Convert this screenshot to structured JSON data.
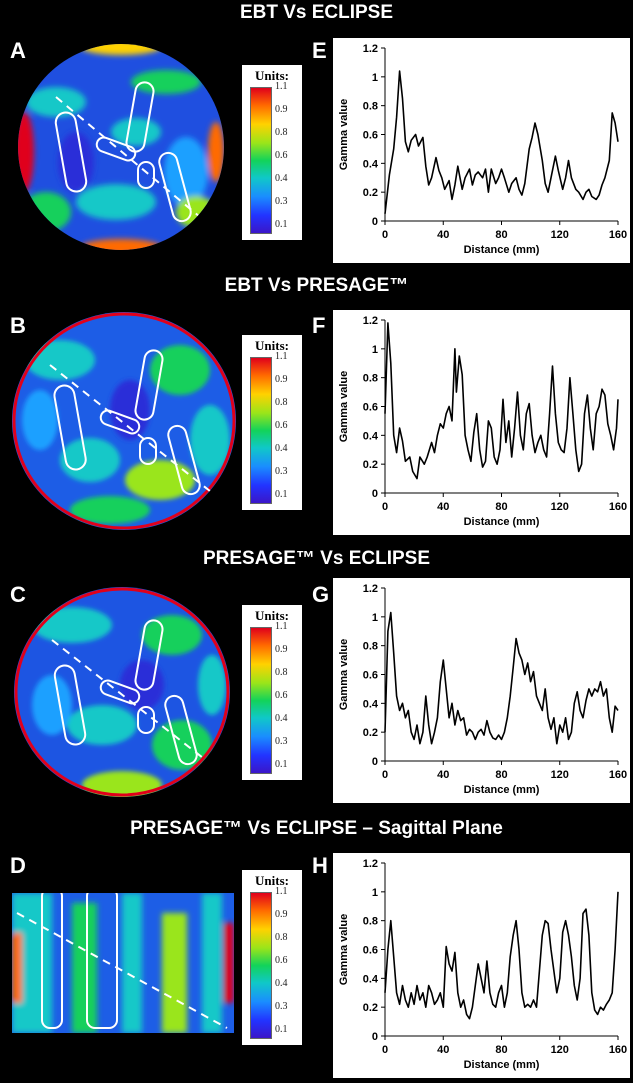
{
  "titles": [
    "EBT Vs ECLIPSE",
    "EBT Vs PRESAGE™",
    "PRESAGE™ Vs ECLIPSE",
    "PRESAGE™ Vs ECLIPSE – Sagittal Plane"
  ],
  "panel_letters": [
    "A",
    "B",
    "C",
    "D",
    "E",
    "F",
    "G",
    "H"
  ],
  "legend": {
    "title": "Units:",
    "ticks": [
      "1.1",
      "0.9",
      "0.8",
      "0.6",
      "0.4",
      "0.3",
      "0.1"
    ],
    "colors": [
      "#e0001b",
      "#ff6a00",
      "#ffd200",
      "#9ae51a",
      "#12d35a",
      "#10c8c8",
      "#1a8dff",
      "#2233ff",
      "#3b16c8"
    ]
  },
  "chart_data": [
    {
      "panel": "E",
      "type": "line",
      "xlabel": "Distance (mm)",
      "ylabel": "Gamma value",
      "xlim": [
        0,
        160
      ],
      "ylim": [
        0,
        1.2
      ],
      "xticks": [
        "0",
        "40",
        "80",
        "120",
        "160"
      ],
      "yticks": [
        "0",
        "0.2",
        "0.4",
        "0.6",
        "0.8",
        "1",
        "1.2"
      ],
      "x": [
        0,
        3,
        6,
        8,
        10,
        12,
        14,
        16,
        18,
        21,
        23,
        26,
        28,
        30,
        32,
        35,
        37,
        39,
        41,
        44,
        46,
        48,
        50,
        53,
        55,
        58,
        60,
        62,
        64,
        67,
        69,
        71,
        73,
        76,
        78,
        80,
        82,
        85,
        87,
        90,
        92,
        94,
        96,
        99,
        101,
        103,
        105,
        108,
        110,
        112,
        114,
        117,
        119,
        122,
        124,
        126,
        128,
        131,
        133,
        136,
        138,
        140,
        142,
        145,
        147,
        149,
        151,
        154,
        156,
        158,
        160
      ],
      "y": [
        0.05,
        0.32,
        0.5,
        0.72,
        1.04,
        0.85,
        0.55,
        0.48,
        0.56,
        0.6,
        0.52,
        0.58,
        0.38,
        0.25,
        0.3,
        0.44,
        0.35,
        0.3,
        0.22,
        0.28,
        0.15,
        0.25,
        0.38,
        0.22,
        0.3,
        0.36,
        0.25,
        0.32,
        0.34,
        0.3,
        0.36,
        0.2,
        0.36,
        0.26,
        0.3,
        0.36,
        0.3,
        0.2,
        0.26,
        0.3,
        0.22,
        0.18,
        0.26,
        0.5,
        0.58,
        0.68,
        0.6,
        0.42,
        0.26,
        0.2,
        0.3,
        0.45,
        0.35,
        0.22,
        0.3,
        0.42,
        0.3,
        0.22,
        0.2,
        0.15,
        0.2,
        0.22,
        0.17,
        0.15,
        0.18,
        0.25,
        0.3,
        0.42,
        0.75,
        0.68,
        0.55
      ]
    },
    {
      "panel": "F",
      "type": "line",
      "xlabel": "Distance (mm)",
      "ylabel": "Gamma value",
      "xlim": [
        0,
        160
      ],
      "ylim": [
        0,
        1.2
      ],
      "xticks": [
        "0",
        "40",
        "80",
        "120",
        "160"
      ],
      "yticks": [
        "0",
        "0.2",
        "0.4",
        "0.6",
        "0.8",
        "1",
        "1.2"
      ],
      "x": [
        0,
        2,
        4,
        6,
        8,
        10,
        12,
        14,
        17,
        19,
        22,
        24,
        27,
        29,
        32,
        34,
        36,
        38,
        40,
        42,
        44,
        46,
        48,
        49,
        51,
        53,
        55,
        57,
        59,
        61,
        63,
        65,
        67,
        69,
        71,
        73,
        75,
        77,
        79,
        81,
        83,
        85,
        87,
        89,
        91,
        93,
        95,
        97,
        99,
        101,
        103,
        105,
        107,
        109,
        111,
        113,
        115,
        117,
        119,
        121,
        123,
        125,
        127,
        129,
        131,
        133,
        135,
        137,
        139,
        141,
        143,
        145,
        147,
        149,
        151,
        153,
        155,
        157,
        159,
        160
      ],
      "y": [
        0.55,
        1.18,
        0.9,
        0.4,
        0.28,
        0.45,
        0.36,
        0.22,
        0.25,
        0.15,
        0.1,
        0.25,
        0.2,
        0.25,
        0.35,
        0.28,
        0.4,
        0.48,
        0.45,
        0.55,
        0.6,
        0.5,
        1.0,
        0.7,
        0.95,
        0.82,
        0.4,
        0.3,
        0.22,
        0.42,
        0.55,
        0.3,
        0.18,
        0.22,
        0.5,
        0.45,
        0.25,
        0.2,
        0.3,
        0.65,
        0.35,
        0.5,
        0.25,
        0.45,
        0.7,
        0.4,
        0.3,
        0.55,
        0.62,
        0.4,
        0.28,
        0.35,
        0.4,
        0.3,
        0.25,
        0.55,
        0.88,
        0.55,
        0.35,
        0.3,
        0.28,
        0.45,
        0.8,
        0.55,
        0.3,
        0.15,
        0.2,
        0.55,
        0.68,
        0.45,
        0.3,
        0.55,
        0.6,
        0.72,
        0.68,
        0.48,
        0.4,
        0.3,
        0.45,
        0.65
      ]
    },
    {
      "panel": "G",
      "type": "line",
      "xlabel": "Distance (mm)",
      "ylabel": "Gamma value",
      "xlim": [
        0,
        160
      ],
      "ylim": [
        0,
        1.2
      ],
      "xticks": [
        "0",
        "40",
        "80",
        "120",
        "160"
      ],
      "yticks": [
        "0",
        "0.2",
        "0.4",
        "0.6",
        "0.8",
        "1",
        "1.2"
      ],
      "x": [
        0,
        2,
        4,
        6,
        8,
        10,
        12,
        14,
        16,
        18,
        20,
        22,
        24,
        26,
        28,
        30,
        32,
        34,
        36,
        38,
        40,
        42,
        44,
        46,
        48,
        50,
        52,
        54,
        56,
        58,
        60,
        62,
        64,
        66,
        68,
        70,
        72,
        74,
        76,
        78,
        80,
        82,
        84,
        86,
        88,
        90,
        92,
        94,
        96,
        98,
        100,
        102,
        104,
        106,
        108,
        110,
        112,
        114,
        116,
        118,
        120,
        122,
        124,
        126,
        128,
        130,
        132,
        134,
        136,
        138,
        140,
        142,
        144,
        146,
        148,
        150,
        152,
        154,
        156,
        158,
        160
      ],
      "y": [
        0.2,
        0.9,
        1.03,
        0.75,
        0.45,
        0.35,
        0.4,
        0.3,
        0.35,
        0.2,
        0.15,
        0.25,
        0.12,
        0.2,
        0.45,
        0.25,
        0.12,
        0.2,
        0.3,
        0.55,
        0.7,
        0.5,
        0.3,
        0.4,
        0.25,
        0.35,
        0.28,
        0.3,
        0.18,
        0.22,
        0.2,
        0.15,
        0.2,
        0.22,
        0.18,
        0.28,
        0.2,
        0.16,
        0.15,
        0.18,
        0.15,
        0.2,
        0.3,
        0.45,
        0.65,
        0.85,
        0.75,
        0.7,
        0.6,
        0.68,
        0.55,
        0.62,
        0.45,
        0.4,
        0.35,
        0.5,
        0.3,
        0.22,
        0.3,
        0.12,
        0.25,
        0.2,
        0.3,
        0.15,
        0.2,
        0.4,
        0.48,
        0.35,
        0.3,
        0.42,
        0.5,
        0.45,
        0.5,
        0.48,
        0.55,
        0.45,
        0.5,
        0.3,
        0.2,
        0.38,
        0.35
      ]
    },
    {
      "panel": "H",
      "type": "line",
      "xlabel": "Distance (mm)",
      "ylabel": "Gamma value",
      "xlim": [
        0,
        160
      ],
      "ylim": [
        0,
        1.2
      ],
      "xticks": [
        "0",
        "40",
        "80",
        "120",
        "160"
      ],
      "yticks": [
        "0",
        "0.2",
        "0.4",
        "0.6",
        "0.8",
        "1",
        "1.2"
      ],
      "x": [
        0,
        2,
        4,
        6,
        8,
        10,
        12,
        14,
        16,
        18,
        20,
        22,
        24,
        26,
        28,
        30,
        32,
        34,
        36,
        38,
        40,
        42,
        44,
        46,
        48,
        50,
        52,
        54,
        56,
        58,
        60,
        62,
        64,
        66,
        68,
        70,
        72,
        74,
        76,
        78,
        80,
        82,
        84,
        86,
        88,
        90,
        92,
        94,
        96,
        98,
        100,
        102,
        104,
        106,
        108,
        110,
        112,
        114,
        116,
        118,
        120,
        122,
        124,
        126,
        128,
        130,
        132,
        134,
        136,
        138,
        140,
        142,
        144,
        146,
        148,
        150,
        152,
        154,
        156,
        158,
        160
      ],
      "y": [
        0.3,
        0.6,
        0.8,
        0.55,
        0.3,
        0.22,
        0.35,
        0.25,
        0.2,
        0.3,
        0.22,
        0.35,
        0.25,
        0.3,
        0.2,
        0.35,
        0.3,
        0.22,
        0.25,
        0.3,
        0.2,
        0.62,
        0.5,
        0.45,
        0.58,
        0.3,
        0.2,
        0.25,
        0.15,
        0.12,
        0.2,
        0.35,
        0.5,
        0.4,
        0.3,
        0.52,
        0.3,
        0.22,
        0.2,
        0.3,
        0.35,
        0.2,
        0.3,
        0.55,
        0.7,
        0.8,
        0.6,
        0.3,
        0.2,
        0.22,
        0.2,
        0.25,
        0.2,
        0.45,
        0.7,
        0.8,
        0.78,
        0.6,
        0.45,
        0.3,
        0.4,
        0.72,
        0.8,
        0.7,
        0.55,
        0.35,
        0.25,
        0.4,
        0.85,
        0.88,
        0.7,
        0.3,
        0.18,
        0.15,
        0.2,
        0.18,
        0.22,
        0.25,
        0.3,
        0.6,
        1.0
      ]
    }
  ]
}
